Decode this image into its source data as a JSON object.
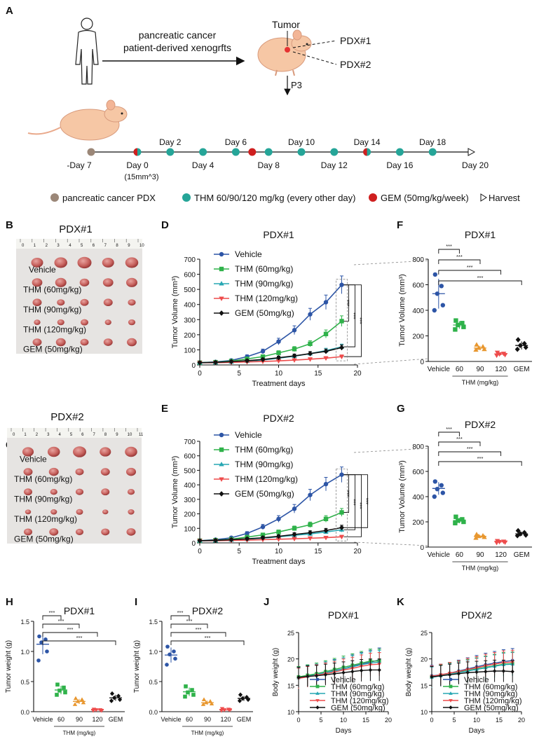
{
  "colors": {
    "vehicle": "#2d55a6",
    "thm60": "#2fb24a",
    "thm90": "#27a7b3",
    "thm120": "#ee4c4c",
    "gem": "#111111",
    "skin": "#f6c7a5",
    "teal": "#25a598",
    "red": "#cf1f1f",
    "brown": "#9b8778"
  },
  "panels": {
    "A": "A",
    "B": "B",
    "C": "C",
    "D": "D",
    "E": "E",
    "F": "F",
    "G": "G",
    "H": "H",
    "I": "I",
    "J": "J",
    "K": "K"
  },
  "schema": {
    "arrow_label_1": "pancreatic cancer",
    "arrow_label_2": "patient-derived xenogrfts",
    "tumor_label": "Tumor",
    "pdx1_label": "PDX#1",
    "pdx2_label": "PDX#2",
    "passage_label": "P3",
    "timeline_days_top": [
      "Day 2",
      "Day 6",
      "Day 10",
      "Day 14",
      "Day 18"
    ],
    "timeline_days_bottom": [
      "Day 4",
      "Day 8",
      "Day 12",
      "Day 16"
    ],
    "start_label": "-Day 7",
    "day0_label": "Day 0",
    "day0_volume": "(15mm^3)",
    "end_label": "Day 20",
    "legend_pdx": "pancreatic cancer PDX",
    "legend_thm": "THM 60/90/120 mg/kg (every other day)",
    "legend_gem": "GEM (50mg/kg/week)",
    "legend_harvest": "Harvest"
  },
  "photos": {
    "b_title": "PDX#1",
    "c_title": "PDX#2",
    "groups": [
      "Vehicle",
      "THM (60mg/kg)",
      "THM (90mg/kg)",
      "THM (120mg/kg)",
      "GEM (50mg/kg)"
    ],
    "ruler_b": [
      "0",
      "1",
      "2",
      "3",
      "4",
      "5",
      "6",
      "7",
      "8",
      "9",
      "10"
    ],
    "ruler_c": [
      "0",
      "1",
      "2",
      "3",
      "4",
      "5",
      "6",
      "7",
      "8",
      "9",
      "10",
      "11"
    ]
  },
  "chart_data": [
    {
      "id": "D",
      "type": "line",
      "title": "PDX#1",
      "xlabel": "Treatment days",
      "ylabel": "Tumor Volume (mm³)",
      "xlim": [
        0,
        20
      ],
      "ylim": [
        0,
        700
      ],
      "xticks": [
        0,
        5,
        10,
        15,
        20
      ],
      "yticks": [
        0,
        100,
        200,
        300,
        400,
        500,
        600,
        700
      ],
      "x": [
        0,
        2,
        4,
        6,
        8,
        10,
        12,
        14,
        16,
        18
      ],
      "series": [
        {
          "name": "Vehicle",
          "values": [
            15,
            20,
            30,
            55,
            90,
            155,
            230,
            335,
            415,
            530
          ]
        },
        {
          "name": "THM (60mg/kg)",
          "values": [
            15,
            18,
            25,
            40,
            55,
            80,
            105,
            140,
            205,
            290
          ]
        },
        {
          "name": "THM (90mg/kg)",
          "values": [
            15,
            16,
            20,
            25,
            32,
            45,
            58,
            75,
            95,
            120
          ]
        },
        {
          "name": "THM (120mg/kg)",
          "values": [
            15,
            15,
            17,
            20,
            23,
            27,
            32,
            38,
            45,
            55
          ]
        },
        {
          "name": "GEM (50mg/kg)",
          "values": [
            15,
            17,
            22,
            28,
            36,
            48,
            60,
            75,
            90,
            115
          ]
        }
      ],
      "significance": [
        "***",
        "***",
        "***"
      ]
    },
    {
      "id": "E",
      "type": "line",
      "title": "PDX#2",
      "xlabel": "Treatment days",
      "ylabel": "Tumor Volume (mm³)",
      "xlim": [
        0,
        20
      ],
      "ylim": [
        0,
        700
      ],
      "xticks": [
        0,
        5,
        10,
        15,
        20
      ],
      "yticks": [
        0,
        100,
        200,
        300,
        400,
        500,
        600,
        700
      ],
      "x": [
        0,
        2,
        4,
        6,
        8,
        10,
        12,
        14,
        16,
        18
      ],
      "series": [
        {
          "name": "Vehicle",
          "values": [
            15,
            22,
            35,
            65,
            110,
            165,
            235,
            330,
            405,
            470
          ]
        },
        {
          "name": "THM (60mg/kg)",
          "values": [
            15,
            18,
            25,
            40,
            55,
            75,
            100,
            125,
            165,
            210
          ]
        },
        {
          "name": "THM (90mg/kg)",
          "values": [
            15,
            16,
            20,
            25,
            32,
            42,
            52,
            62,
            75,
            90
          ]
        },
        {
          "name": "THM (120mg/kg)",
          "values": [
            15,
            15,
            17,
            19,
            22,
            25,
            28,
            32,
            36,
            42
          ]
        },
        {
          "name": "GEM (50mg/kg)",
          "values": [
            15,
            17,
            22,
            28,
            35,
            45,
            58,
            70,
            85,
            105
          ]
        }
      ],
      "significance": [
        "***",
        "***",
        "***",
        "***"
      ]
    },
    {
      "id": "F",
      "type": "scatter",
      "title": "PDX#1",
      "xlabel": "THM (mg/kg)",
      "ylabel": "Tumor Volume (mm³)",
      "ylim": [
        0,
        800
      ],
      "yticks": [
        0,
        200,
        400,
        600,
        800
      ],
      "categories": [
        "Vehicle",
        "60",
        "90",
        "120",
        "GEM"
      ],
      "series": [
        {
          "name": "Vehicle",
          "values": [
            680,
            590,
            530,
            440,
            400
          ],
          "mean": 530
        },
        {
          "name": "THM (60mg/kg)",
          "values": [
            320,
            300,
            285,
            270,
            250
          ],
          "mean": 285
        },
        {
          "name": "THM (90mg/kg)",
          "values": [
            130,
            115,
            105,
            95,
            90
          ],
          "mean": 105
        },
        {
          "name": "THM (120mg/kg)",
          "values": [
            70,
            62,
            58,
            52,
            48
          ],
          "mean": 58
        },
        {
          "name": "GEM (50mg/kg)",
          "values": [
            170,
            140,
            125,
            110,
            95
          ],
          "mean": 125
        }
      ],
      "significance": [
        "***",
        "***",
        "***",
        "***"
      ]
    },
    {
      "id": "G",
      "type": "scatter",
      "title": "PDX#2",
      "xlabel": "THM (mg/kg)",
      "ylabel": "Tumor Volume (mm³)",
      "ylim": [
        0,
        800
      ],
      "yticks": [
        0,
        200,
        400,
        600,
        800
      ],
      "categories": [
        "Vehicle",
        "60",
        "90",
        "120",
        "GEM"
      ],
      "series": [
        {
          "name": "Vehicle",
          "values": [
            520,
            490,
            460,
            430,
            400
          ],
          "mean": 465
        },
        {
          "name": "THM (60mg/kg)",
          "values": [
            240,
            220,
            210,
            200,
            190
          ],
          "mean": 210
        },
        {
          "name": "THM (90mg/kg)",
          "values": [
            100,
            90,
            85,
            78,
            72
          ],
          "mean": 85
        },
        {
          "name": "THM (120mg/kg)",
          "values": [
            50,
            45,
            42,
            38,
            35
          ],
          "mean": 42
        },
        {
          "name": "GEM (50mg/kg)",
          "values": [
            130,
            115,
            105,
            95,
            90
          ],
          "mean": 105
        }
      ],
      "significance": [
        "***",
        "***",
        "***",
        "***"
      ]
    },
    {
      "id": "H",
      "type": "scatter",
      "title": "PDX#1",
      "xlabel": "THM (mg/kg)",
      "ylabel": "Tumor weight (g)",
      "ylim": [
        0,
        1.5
      ],
      "yticks": [
        0.0,
        0.5,
        1.0,
        1.5
      ],
      "categories": [
        "Vehicle",
        "60",
        "90",
        "120",
        "GEM"
      ],
      "series": [
        {
          "name": "Vehicle",
          "values": [
            1.25,
            1.2,
            1.15,
            1.0,
            0.85
          ],
          "mean": 1.12
        },
        {
          "name": "THM (60mg/kg)",
          "values": [
            0.45,
            0.4,
            0.35,
            0.32,
            0.28
          ],
          "mean": 0.36
        },
        {
          "name": "THM (90mg/kg)",
          "values": [
            0.22,
            0.2,
            0.17,
            0.15,
            0.12
          ],
          "mean": 0.17
        },
        {
          "name": "THM (120mg/kg)",
          "values": [
            0.04,
            0.03,
            0.03,
            0.02,
            0.02
          ],
          "mean": 0.03
        },
        {
          "name": "GEM (50mg/kg)",
          "values": [
            0.3,
            0.26,
            0.23,
            0.2,
            0.18
          ],
          "mean": 0.23
        }
      ],
      "significance": [
        "***",
        "***",
        "***",
        "***"
      ]
    },
    {
      "id": "I",
      "type": "scatter",
      "title": "PDX#2",
      "xlabel": "THM (mg/kg)",
      "ylabel": "Tumor weight (g)",
      "ylim": [
        0,
        1.5
      ],
      "yticks": [
        0.0,
        0.5,
        1.0,
        1.5
      ],
      "categories": [
        "Vehicle",
        "60",
        "90",
        "120",
        "GEM"
      ],
      "series": [
        {
          "name": "Vehicle",
          "values": [
            1.08,
            1.0,
            0.95,
            0.88,
            0.78
          ],
          "mean": 0.94
        },
        {
          "name": "THM (60mg/kg)",
          "values": [
            0.42,
            0.36,
            0.32,
            0.28,
            0.25
          ],
          "mean": 0.33
        },
        {
          "name": "THM (90mg/kg)",
          "values": [
            0.2,
            0.17,
            0.15,
            0.13,
            0.12
          ],
          "mean": 0.15
        },
        {
          "name": "THM (120mg/kg)",
          "values": [
            0.05,
            0.04,
            0.03,
            0.03,
            0.02
          ],
          "mean": 0.03
        },
        {
          "name": "GEM (50mg/kg)",
          "values": [
            0.28,
            0.24,
            0.22,
            0.2,
            0.18
          ],
          "mean": 0.22
        }
      ],
      "significance": [
        "***",
        "***",
        "***",
        "***"
      ]
    },
    {
      "id": "J",
      "type": "line",
      "title": "PDX#1",
      "xlabel": "Days",
      "ylabel": "Body weight (g)",
      "xlim": [
        0,
        20
      ],
      "ylim": [
        10,
        25
      ],
      "xticks": [
        0,
        5,
        10,
        15,
        20
      ],
      "yticks": [
        10,
        15,
        20,
        25
      ],
      "x": [
        0,
        2,
        4,
        6,
        8,
        10,
        12,
        14,
        16,
        18
      ],
      "series": [
        {
          "name": "Vehicle",
          "values": [
            16.5,
            16.8,
            17.0,
            17.4,
            17.8,
            18.1,
            18.6,
            19.0,
            19.4,
            19.8
          ]
        },
        {
          "name": "THM (60mg/kg)",
          "values": [
            16.6,
            16.9,
            17.2,
            17.6,
            18.0,
            18.4,
            18.8,
            19.2,
            19.6,
            19.6
          ]
        },
        {
          "name": "THM (90mg/kg)",
          "values": [
            16.4,
            16.7,
            17.0,
            17.4,
            17.7,
            18.1,
            18.5,
            18.9,
            19.2,
            19.4
          ]
        },
        {
          "name": "THM (120mg/kg)",
          "values": [
            16.3,
            16.6,
            16.9,
            17.2,
            17.5,
            17.9,
            18.2,
            18.6,
            18.9,
            19.0
          ]
        },
        {
          "name": "GEM (50mg/kg)",
          "values": [
            16.5,
            16.7,
            16.8,
            17.0,
            17.2,
            17.4,
            17.6,
            17.8,
            17.9,
            17.9
          ]
        }
      ]
    },
    {
      "id": "K",
      "type": "line",
      "title": "PDX#2",
      "xlabel": "Days",
      "ylabel": "Body weight (g)",
      "xlim": [
        0,
        20
      ],
      "ylim": [
        10,
        25
      ],
      "xticks": [
        0,
        5,
        10,
        15,
        20
      ],
      "yticks": [
        10,
        15,
        20,
        25
      ],
      "x": [
        0,
        2,
        4,
        6,
        8,
        10,
        12,
        14,
        16,
        18
      ],
      "series": [
        {
          "name": "Vehicle",
          "values": [
            16.8,
            17.0,
            17.3,
            17.7,
            18.1,
            18.5,
            18.9,
            19.2,
            19.5,
            19.7
          ]
        },
        {
          "name": "THM (60mg/kg)",
          "values": [
            16.6,
            16.9,
            17.2,
            17.5,
            17.8,
            18.1,
            18.4,
            18.7,
            19.0,
            19.1
          ]
        },
        {
          "name": "THM (90mg/kg)",
          "values": [
            16.5,
            16.8,
            17.1,
            17.4,
            17.7,
            18.0,
            18.3,
            18.6,
            18.9,
            19.0
          ]
        },
        {
          "name": "THM (120mg/kg)",
          "values": [
            16.7,
            17.0,
            17.3,
            17.6,
            18.0,
            18.3,
            18.7,
            19.0,
            19.3,
            19.4
          ]
        },
        {
          "name": "GEM (50mg/kg)",
          "values": [
            16.6,
            16.8,
            17.0,
            17.2,
            17.4,
            17.5,
            17.6,
            17.7,
            17.7,
            17.6
          ]
        }
      ]
    }
  ]
}
